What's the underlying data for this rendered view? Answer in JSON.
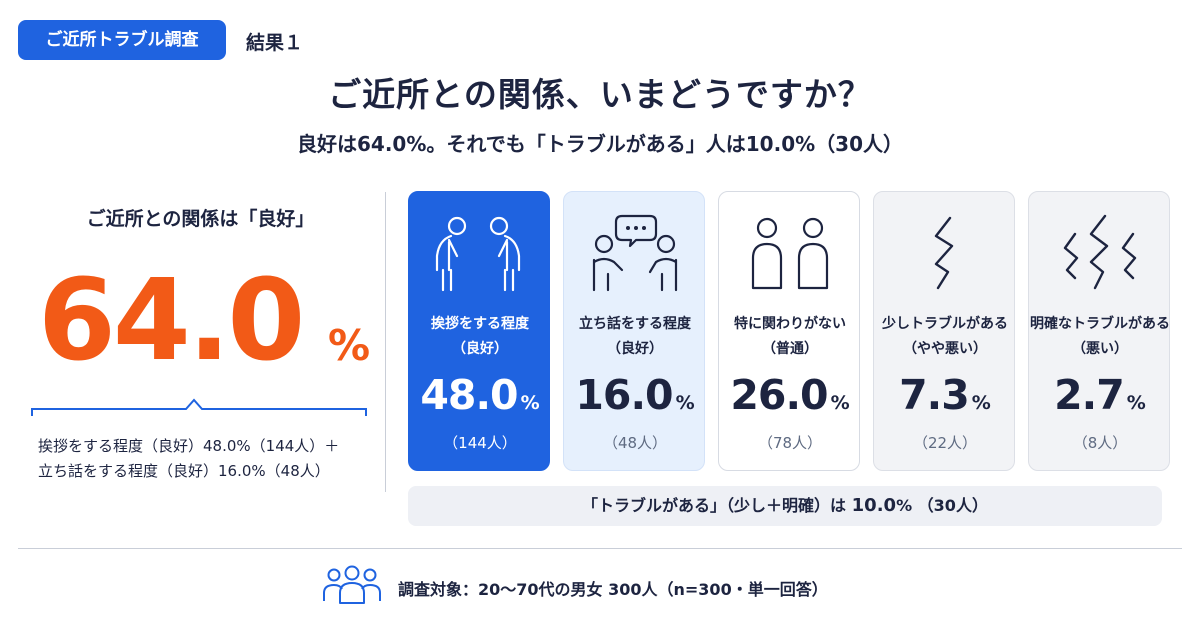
{
  "header": {
    "tag": "ご近所トラブル調査",
    "result_label": "結果１"
  },
  "title": "ご近所との関係、いまどうですか？",
  "subtitle": "良好は64.0%。それでも「トラブルがある」人は10.0%（30人）",
  "summary": {
    "heading": "ご近所との関係は「良好」",
    "value": "64.0",
    "unit": "%",
    "note_line1": "挨拶をする程度（良好）48.0%（144人）＋",
    "note_line2": "立ち話をする程度（良好）16.0%（48人）"
  },
  "chart_data": {
    "type": "table",
    "categories": [
      "挨拶をする程度（良好）",
      "立ち話をする程度（良好）",
      "特に関わりがない（普通）",
      "少しトラブルがある（やや悪い）",
      "明確なトラブルがある（悪い）"
    ],
    "cards": [
      {
        "label_line1": "挨拶をする程度",
        "label_line2": "（良好）",
        "value": "48.0",
        "unit": "%",
        "count": "（144人）",
        "icon": "bowing-people-icon"
      },
      {
        "label_line1": "立ち話をする程度",
        "label_line2": "（良好）",
        "value": "16.0",
        "unit": "%",
        "count": "（48人）",
        "icon": "chatting-people-icon"
      },
      {
        "label_line1": "特に関わりがない",
        "label_line2": "（普通）",
        "value": "26.0",
        "unit": "%",
        "count": "（78人）",
        "icon": "two-people-icon"
      },
      {
        "label_line1": "少しトラブルがある",
        "label_line2": "（やや悪い）",
        "value": "7.3",
        "unit": "%",
        "count": "（22人）",
        "icon": "single-zigzag-icon"
      },
      {
        "label_line1": "明確なトラブルがある",
        "label_line2": "（悪い）",
        "value": "2.7",
        "unit": "%",
        "count": "（8人）",
        "icon": "triple-zigzag-icon"
      }
    ],
    "values": [
      48.0,
      16.0,
      26.0,
      7.3,
      2.7
    ],
    "counts": [
      144,
      48,
      78,
      22,
      8
    ]
  },
  "trouble_total": {
    "prefix": "「トラブルがある」（少し＋明確）は",
    "value": "10.0",
    "unit": "%",
    "count": "（30人）"
  },
  "footer": {
    "text": "調査対象：20〜70代の男女 300人（n=300・単一回答）",
    "icon": "people-group-icon"
  },
  "colors": {
    "accent": "#1f63e0",
    "highlight": "#f25a17",
    "text": "#1d2440",
    "light_card": "#e6f0fd",
    "grey_card": "#f2f3f6"
  }
}
